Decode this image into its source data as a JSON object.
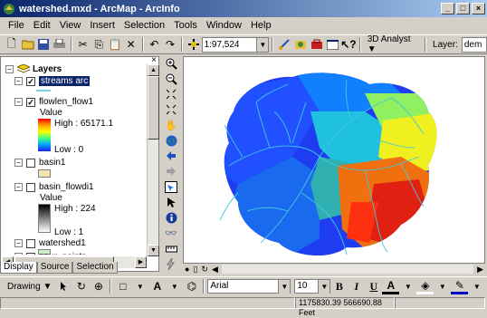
{
  "window": {
    "title": "watershed.mxd - ArcMap - ArcInfo"
  },
  "menu": [
    "File",
    "Edit",
    "View",
    "Insert",
    "Selection",
    "Tools",
    "Window",
    "Help"
  ],
  "toolbar": {
    "scale": "1:97,524",
    "analyst_label": "3D Analyst ▼",
    "layer_label": "Layer:",
    "layer_value": "dem"
  },
  "toc": {
    "root": "Layers",
    "layers": [
      {
        "name": "streams arc",
        "checked": true
      },
      {
        "name": "flowlen_flow1",
        "checked": true,
        "value_label": "Value",
        "high": "High : 65171.1",
        "low": "Low : 0"
      },
      {
        "name": "basin1",
        "checked": false
      },
      {
        "name": "basin_flowdi1",
        "checked": false,
        "value_label": "Value",
        "high": "High : 224",
        "low": "Low : 1"
      },
      {
        "name": "watershed1",
        "checked": false
      },
      {
        "name": "pour_points",
        "checked": false
      }
    ],
    "tabs": [
      "Display",
      "Source",
      "Selection"
    ]
  },
  "drawing": {
    "label": "Drawing ▼",
    "font": "Arial",
    "size": "10",
    "bold": "B",
    "italic": "I",
    "underline": "U"
  },
  "status": {
    "coords": "1175830.39  566690.88 Feet"
  },
  "colors": {
    "title_start": "#0a246a",
    "title_end": "#a6caf0",
    "selection": "#0a246a",
    "stream": "#40c8e0"
  }
}
